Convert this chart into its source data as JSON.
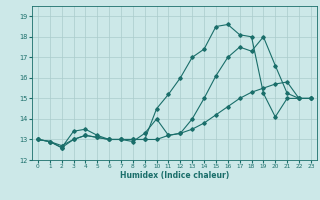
{
  "title": "",
  "xlabel": "Humidex (Indice chaleur)",
  "xlim": [
    -0.5,
    23.5
  ],
  "ylim": [
    12,
    19.5
  ],
  "yticks": [
    12,
    13,
    14,
    15,
    16,
    17,
    18,
    19
  ],
  "xticks": [
    0,
    1,
    2,
    3,
    4,
    5,
    6,
    7,
    8,
    9,
    10,
    11,
    12,
    13,
    14,
    15,
    16,
    17,
    18,
    19,
    20,
    21,
    22,
    23
  ],
  "bg_color": "#cce8e8",
  "line_color": "#1a6e6a",
  "grid_color": "#aacccc",
  "line1_y": [
    13.0,
    12.9,
    12.6,
    13.4,
    13.5,
    13.2,
    13.0,
    13.0,
    12.9,
    13.3,
    14.0,
    13.2,
    13.3,
    14.0,
    15.0,
    16.1,
    17.0,
    17.5,
    17.3,
    18.0,
    16.6,
    15.25,
    15.0,
    15.0
  ],
  "line2_y": [
    13.0,
    12.9,
    12.6,
    13.0,
    13.2,
    13.1,
    13.0,
    13.0,
    13.0,
    13.0,
    13.0,
    13.2,
    13.3,
    13.5,
    13.8,
    14.2,
    14.6,
    15.0,
    15.3,
    15.5,
    15.7,
    15.8,
    15.0,
    15.0
  ],
  "line3_y": [
    13.0,
    12.9,
    12.7,
    13.0,
    13.2,
    13.1,
    13.0,
    13.0,
    13.0,
    13.0,
    14.5,
    15.2,
    16.0,
    17.0,
    17.4,
    18.5,
    18.6,
    18.1,
    18.0,
    15.25,
    14.1,
    15.0,
    15.0,
    15.0
  ]
}
